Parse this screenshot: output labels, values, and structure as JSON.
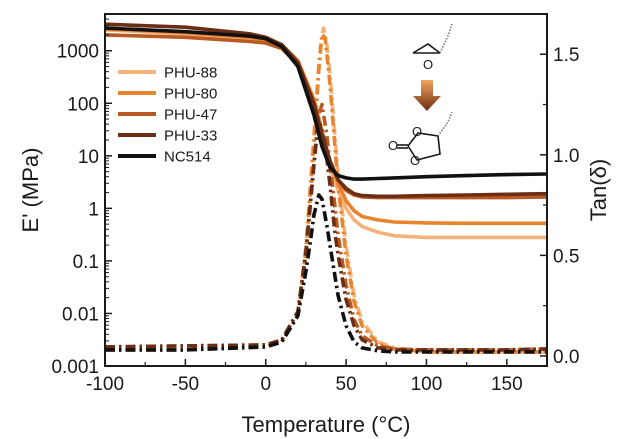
{
  "chart_data": {
    "type": "line",
    "xlabel": "Temperature (°C)",
    "ylabel_left": "E' (MPa)",
    "ylabel_right": "Tan(δ)",
    "xlim": [
      -100,
      175
    ],
    "ylim_left": [
      0.001,
      5000
    ],
    "yscale_left": "log",
    "ylim_right": [
      -0.05,
      1.7
    ],
    "x_ticks": [
      -100,
      -50,
      0,
      50,
      100,
      150
    ],
    "y_left_ticks": [
      0.001,
      0.01,
      0.1,
      1,
      10,
      100,
      1000
    ],
    "y_left_tick_labels": [
      "0.001",
      "0.01",
      "0.1",
      "1",
      "10",
      "100",
      "1000"
    ],
    "y_right_ticks": [
      0.0,
      0.5,
      1.0,
      1.5
    ],
    "y_right_tick_labels": [
      "0.0",
      "0.5",
      "1.0",
      "1.5"
    ],
    "legend": {
      "placement": "top-left",
      "entries": [
        "PHU-88",
        "PHU-80",
        "PHU-47",
        "PHU-33",
        "NC514"
      ]
    },
    "series": [
      {
        "name": "PHU-88",
        "color": "#f4b27a",
        "storage_modulus": {
          "x": [
            -100,
            -50,
            -10,
            0,
            10,
            20,
            30,
            35,
            40,
            45,
            50,
            55,
            60,
            70,
            80,
            100,
            125,
            150,
            175
          ],
          "y": [
            2500,
            2100,
            1700,
            1500,
            1200,
            600,
            100,
            25,
            6,
            2.2,
            1.0,
            0.6,
            0.45,
            0.35,
            0.3,
            0.28,
            0.28,
            0.28,
            0.28
          ]
        },
        "tan_delta": {
          "x": [
            -100,
            -50,
            0,
            10,
            20,
            25,
            30,
            33,
            35,
            36,
            38,
            40,
            43,
            45,
            50,
            55,
            60,
            70,
            80,
            100,
            125,
            150,
            175
          ],
          "y": [
            0.03,
            0.03,
            0.045,
            0.07,
            0.2,
            0.55,
            1.1,
            1.45,
            1.6,
            1.63,
            1.55,
            1.4,
            1.1,
            0.9,
            0.55,
            0.3,
            0.17,
            0.07,
            0.04,
            0.02,
            0.02,
            0.02,
            0.02
          ]
        }
      },
      {
        "name": "PHU-80",
        "color": "#e8832e",
        "storage_modulus": {
          "x": [
            -100,
            -50,
            -10,
            0,
            10,
            20,
            30,
            35,
            40,
            45,
            50,
            55,
            60,
            70,
            80,
            100,
            125,
            150,
            175
          ],
          "y": [
            2600,
            2200,
            1800,
            1600,
            1300,
            650,
            120,
            30,
            8,
            3,
            1.4,
            0.9,
            0.7,
            0.6,
            0.55,
            0.53,
            0.52,
            0.52,
            0.52
          ]
        },
        "tan_delta": {
          "x": [
            -100,
            -50,
            0,
            10,
            20,
            25,
            30,
            33,
            35,
            37,
            40,
            43,
            45,
            50,
            55,
            60,
            70,
            80,
            100,
            125,
            150,
            175
          ],
          "y": [
            0.03,
            0.03,
            0.045,
            0.07,
            0.2,
            0.5,
            1.05,
            1.42,
            1.6,
            1.58,
            1.35,
            1.05,
            0.85,
            0.5,
            0.27,
            0.15,
            0.06,
            0.035,
            0.02,
            0.02,
            0.02,
            0.02
          ]
        }
      },
      {
        "name": "PHU-47",
        "color": "#b85a22",
        "storage_modulus": {
          "x": [
            -100,
            -50,
            -10,
            0,
            10,
            20,
            30,
            35,
            40,
            45,
            50,
            55,
            60,
            70,
            80,
            100,
            125,
            150,
            175
          ],
          "y": [
            2000,
            1800,
            1500,
            1400,
            1100,
            550,
            100,
            25,
            8,
            3.5,
            2.2,
            1.8,
            1.65,
            1.6,
            1.6,
            1.6,
            1.6,
            1.6,
            1.65
          ]
        },
        "tan_delta": {
          "x": [
            -100,
            -50,
            0,
            10,
            20,
            25,
            30,
            33,
            35,
            38,
            40,
            43,
            45,
            50,
            55,
            60,
            70,
            80,
            100,
            125,
            150,
            175
          ],
          "y": [
            0.045,
            0.05,
            0.055,
            0.08,
            0.22,
            0.5,
            0.95,
            1.2,
            1.25,
            1.1,
            0.95,
            0.75,
            0.6,
            0.35,
            0.18,
            0.1,
            0.05,
            0.035,
            0.03,
            0.03,
            0.03,
            0.035
          ]
        }
      },
      {
        "name": "PHU-33",
        "color": "#6b2e14",
        "storage_modulus": {
          "x": [
            -100,
            -50,
            -10,
            0,
            10,
            20,
            30,
            35,
            40,
            45,
            50,
            55,
            60,
            70,
            80,
            100,
            125,
            150,
            175
          ],
          "y": [
            3200,
            2800,
            2100,
            1800,
            1300,
            600,
            100,
            25,
            8,
            3.5,
            2.4,
            1.9,
            1.75,
            1.7,
            1.7,
            1.75,
            1.8,
            1.85,
            1.9
          ]
        },
        "tan_delta": {
          "x": [
            -100,
            -50,
            0,
            10,
            20,
            25,
            30,
            32,
            34,
            37,
            40,
            43,
            45,
            50,
            55,
            60,
            70,
            80,
            100,
            125,
            150,
            175
          ],
          "y": [
            0.045,
            0.05,
            0.055,
            0.08,
            0.22,
            0.52,
            0.95,
            1.12,
            1.15,
            1.05,
            0.85,
            0.62,
            0.5,
            0.28,
            0.15,
            0.08,
            0.04,
            0.03,
            0.03,
            0.03,
            0.03,
            0.035
          ]
        }
      },
      {
        "name": "NC514",
        "color": "#111111",
        "storage_modulus": {
          "x": [
            -100,
            -50,
            -10,
            0,
            10,
            20,
            30,
            35,
            40,
            45,
            50,
            55,
            60,
            70,
            80,
            100,
            125,
            150,
            175
          ],
          "y": [
            2700,
            2300,
            1900,
            1700,
            1200,
            500,
            60,
            15,
            6,
            4.2,
            3.8,
            3.6,
            3.6,
            3.7,
            3.8,
            4.0,
            4.2,
            4.4,
            4.5
          ]
        },
        "tan_delta": {
          "x": [
            -100,
            -50,
            0,
            10,
            20,
            25,
            28,
            30,
            33,
            35,
            38,
            40,
            45,
            50,
            55,
            60,
            70,
            80,
            100,
            125,
            150,
            175
          ],
          "y": [
            0.03,
            0.03,
            0.045,
            0.07,
            0.2,
            0.42,
            0.58,
            0.7,
            0.8,
            0.78,
            0.65,
            0.55,
            0.3,
            0.15,
            0.07,
            0.04,
            0.025,
            0.02,
            0.02,
            0.02,
            0.02,
            0.02
          ]
        }
      }
    ],
    "inset_scheme": {
      "description_labels": []
    }
  }
}
